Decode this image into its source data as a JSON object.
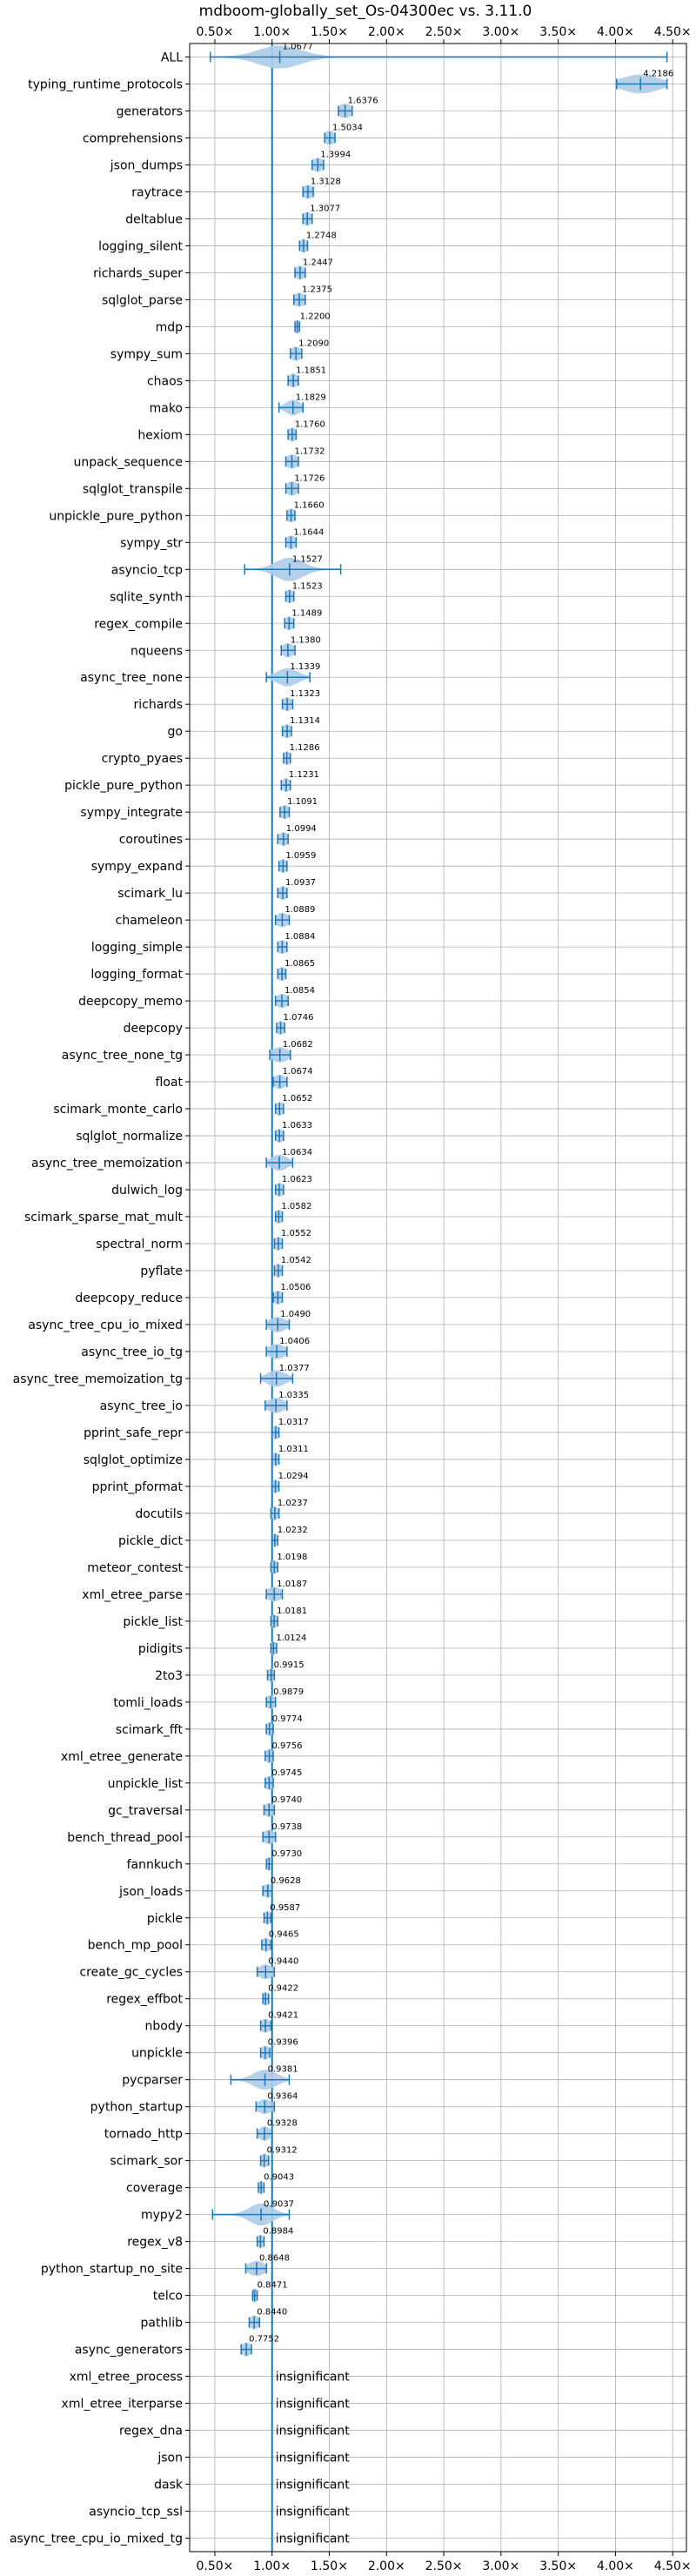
{
  "chart_data": {
    "type": "violin",
    "title": "mdboom-globally_set_Os-04300ec vs. 3.11.0",
    "orientation": "horizontal",
    "xlim": [
      0.28,
      4.62
    ],
    "x_ticks": [
      0.5,
      1.0,
      1.5,
      2.0,
      2.5,
      3.0,
      3.5,
      4.0,
      4.5
    ],
    "x_tick_labels": [
      "0.50×",
      "1.00×",
      "1.50×",
      "2.00×",
      "2.50×",
      "3.00×",
      "3.50×",
      "4.00×",
      "4.50×"
    ],
    "reference_line": 1.0,
    "grid": true,
    "colors": {
      "violin": "#aecde8",
      "accent": "#1f77b4",
      "grid": "#b0b0b0"
    },
    "insignificant_text": "insignificant",
    "benchmarks": [
      {
        "name": "ALL",
        "value": "1.0677",
        "mean": 1.0677,
        "min": 0.46,
        "max": 4.45,
        "spread": 0.18
      },
      {
        "name": "typing_runtime_protocols",
        "value": "4.2186",
        "mean": 4.2186,
        "min": 4.01,
        "max": 4.45,
        "spread": 0.16
      },
      {
        "name": "generators",
        "value": "1.6376",
        "mean": 1.6376,
        "min": 1.58,
        "max": 1.7,
        "spread": 0.06
      },
      {
        "name": "comprehensions",
        "value": "1.5034",
        "mean": 1.5034,
        "min": 1.46,
        "max": 1.55,
        "spread": 0.05
      },
      {
        "name": "json_dumps",
        "value": "1.3994",
        "mean": 1.3994,
        "min": 1.35,
        "max": 1.45,
        "spread": 0.05
      },
      {
        "name": "raytrace",
        "value": "1.3128",
        "mean": 1.3128,
        "min": 1.27,
        "max": 1.36,
        "spread": 0.05
      },
      {
        "name": "deltablue",
        "value": "1.3077",
        "mean": 1.3077,
        "min": 1.27,
        "max": 1.35,
        "spread": 0.04
      },
      {
        "name": "logging_silent",
        "value": "1.2748",
        "mean": 1.2748,
        "min": 1.24,
        "max": 1.31,
        "spread": 0.04
      },
      {
        "name": "richards_super",
        "value": "1.2447",
        "mean": 1.2447,
        "min": 1.2,
        "max": 1.29,
        "spread": 0.04
      },
      {
        "name": "sqlglot_parse",
        "value": "1.2375",
        "mean": 1.2375,
        "min": 1.19,
        "max": 1.29,
        "spread": 0.05
      },
      {
        "name": "mdp",
        "value": "1.2200",
        "mean": 1.22,
        "min": 1.2,
        "max": 1.24,
        "spread": 0.03
      },
      {
        "name": "sympy_sum",
        "value": "1.2090",
        "mean": 1.209,
        "min": 1.16,
        "max": 1.26,
        "spread": 0.05
      },
      {
        "name": "chaos",
        "value": "1.1851",
        "mean": 1.1851,
        "min": 1.14,
        "max": 1.23,
        "spread": 0.04
      },
      {
        "name": "mako",
        "value": "1.1829",
        "mean": 1.1829,
        "min": 1.06,
        "max": 1.27,
        "spread": 0.06
      },
      {
        "name": "hexiom",
        "value": "1.1760",
        "mean": 1.176,
        "min": 1.14,
        "max": 1.21,
        "spread": 0.04
      },
      {
        "name": "unpack_sequence",
        "value": "1.1732",
        "mean": 1.1732,
        "min": 1.12,
        "max": 1.23,
        "spread": 0.05
      },
      {
        "name": "sqlglot_transpile",
        "value": "1.1726",
        "mean": 1.1726,
        "min": 1.12,
        "max": 1.23,
        "spread": 0.05
      },
      {
        "name": "unpickle_pure_python",
        "value": "1.1660",
        "mean": 1.166,
        "min": 1.13,
        "max": 1.2,
        "spread": 0.04
      },
      {
        "name": "sympy_str",
        "value": "1.1644",
        "mean": 1.1644,
        "min": 1.12,
        "max": 1.21,
        "spread": 0.04
      },
      {
        "name": "asyncio_tcp",
        "value": "1.1527",
        "mean": 1.1527,
        "min": 0.76,
        "max": 1.6,
        "spread": 0.12
      },
      {
        "name": "sqlite_synth",
        "value": "1.1523",
        "mean": 1.1523,
        "min": 1.12,
        "max": 1.19,
        "spread": 0.04
      },
      {
        "name": "regex_compile",
        "value": "1.1489",
        "mean": 1.1489,
        "min": 1.11,
        "max": 1.19,
        "spread": 0.04
      },
      {
        "name": "nqueens",
        "value": "1.1380",
        "mean": 1.138,
        "min": 1.08,
        "max": 1.2,
        "spread": 0.05
      },
      {
        "name": "async_tree_none",
        "value": "1.1339",
        "mean": 1.1339,
        "min": 0.95,
        "max": 1.33,
        "spread": 0.09
      },
      {
        "name": "richards",
        "value": "1.1323",
        "mean": 1.1323,
        "min": 1.09,
        "max": 1.18,
        "spread": 0.04
      },
      {
        "name": "go",
        "value": "1.1314",
        "mean": 1.1314,
        "min": 1.09,
        "max": 1.17,
        "spread": 0.04
      },
      {
        "name": "crypto_pyaes",
        "value": "1.1286",
        "mean": 1.1286,
        "min": 1.1,
        "max": 1.16,
        "spread": 0.04
      },
      {
        "name": "pickle_pure_python",
        "value": "1.1231",
        "mean": 1.1231,
        "min": 1.08,
        "max": 1.16,
        "spread": 0.04
      },
      {
        "name": "sympy_integrate",
        "value": "1.1091",
        "mean": 1.1091,
        "min": 1.07,
        "max": 1.15,
        "spread": 0.04
      },
      {
        "name": "coroutines",
        "value": "1.0994",
        "mean": 1.0994,
        "min": 1.05,
        "max": 1.14,
        "spread": 0.04
      },
      {
        "name": "sympy_expand",
        "value": "1.0959",
        "mean": 1.0959,
        "min": 1.06,
        "max": 1.13,
        "spread": 0.04
      },
      {
        "name": "scimark_lu",
        "value": "1.0937",
        "mean": 1.0937,
        "min": 1.05,
        "max": 1.13,
        "spread": 0.04
      },
      {
        "name": "chameleon",
        "value": "1.0889",
        "mean": 1.0889,
        "min": 1.03,
        "max": 1.15,
        "spread": 0.05
      },
      {
        "name": "logging_simple",
        "value": "1.0884",
        "mean": 1.0884,
        "min": 1.05,
        "max": 1.13,
        "spread": 0.04
      },
      {
        "name": "logging_format",
        "value": "1.0865",
        "mean": 1.0865,
        "min": 1.05,
        "max": 1.12,
        "spread": 0.04
      },
      {
        "name": "deepcopy_memo",
        "value": "1.0854",
        "mean": 1.0854,
        "min": 1.03,
        "max": 1.14,
        "spread": 0.05
      },
      {
        "name": "deepcopy",
        "value": "1.0746",
        "mean": 1.0746,
        "min": 1.04,
        "max": 1.11,
        "spread": 0.04
      },
      {
        "name": "async_tree_none_tg",
        "value": "1.0682",
        "mean": 1.0682,
        "min": 0.98,
        "max": 1.16,
        "spread": 0.07
      },
      {
        "name": "float",
        "value": "1.0674",
        "mean": 1.0674,
        "min": 1.01,
        "max": 1.13,
        "spread": 0.05
      },
      {
        "name": "scimark_monte_carlo",
        "value": "1.0652",
        "mean": 1.0652,
        "min": 1.03,
        "max": 1.1,
        "spread": 0.04
      },
      {
        "name": "sqlglot_normalize",
        "value": "1.0633",
        "mean": 1.0633,
        "min": 1.03,
        "max": 1.1,
        "spread": 0.04
      },
      {
        "name": "async_tree_memoization",
        "value": "1.0634",
        "mean": 1.0634,
        "min": 0.95,
        "max": 1.18,
        "spread": 0.07
      },
      {
        "name": "dulwich_log",
        "value": "1.0623",
        "mean": 1.0623,
        "min": 1.03,
        "max": 1.1,
        "spread": 0.04
      },
      {
        "name": "scimark_sparse_mat_mult",
        "value": "1.0582",
        "mean": 1.0582,
        "min": 1.03,
        "max": 1.09,
        "spread": 0.04
      },
      {
        "name": "spectral_norm",
        "value": "1.0552",
        "mean": 1.0552,
        "min": 1.02,
        "max": 1.09,
        "spread": 0.04
      },
      {
        "name": "pyflate",
        "value": "1.0542",
        "mean": 1.0542,
        "min": 1.02,
        "max": 1.09,
        "spread": 0.04
      },
      {
        "name": "deepcopy_reduce",
        "value": "1.0506",
        "mean": 1.0506,
        "min": 1.01,
        "max": 1.09,
        "spread": 0.04
      },
      {
        "name": "async_tree_cpu_io_mixed",
        "value": "1.0490",
        "mean": 1.049,
        "min": 0.95,
        "max": 1.15,
        "spread": 0.07
      },
      {
        "name": "async_tree_io_tg",
        "value": "1.0406",
        "mean": 1.0406,
        "min": 0.95,
        "max": 1.13,
        "spread": 0.07
      },
      {
        "name": "async_tree_memoization_tg",
        "value": "1.0377",
        "mean": 1.0377,
        "min": 0.9,
        "max": 1.18,
        "spread": 0.08
      },
      {
        "name": "async_tree_io",
        "value": "1.0335",
        "mean": 1.0335,
        "min": 0.94,
        "max": 1.13,
        "spread": 0.07
      },
      {
        "name": "pprint_safe_repr",
        "value": "1.0317",
        "mean": 1.0317,
        "min": 1.0,
        "max": 1.06,
        "spread": 0.03
      },
      {
        "name": "sqlglot_optimize",
        "value": "1.0311",
        "mean": 1.0311,
        "min": 1.0,
        "max": 1.06,
        "spread": 0.03
      },
      {
        "name": "pprint_pformat",
        "value": "1.0294",
        "mean": 1.0294,
        "min": 1.0,
        "max": 1.06,
        "spread": 0.03
      },
      {
        "name": "docutils",
        "value": "1.0237",
        "mean": 1.0237,
        "min": 0.99,
        "max": 1.06,
        "spread": 0.03
      },
      {
        "name": "pickle_dict",
        "value": "1.0232",
        "mean": 1.0232,
        "min": 1.0,
        "max": 1.05,
        "spread": 0.03
      },
      {
        "name": "meteor_contest",
        "value": "1.0198",
        "mean": 1.0198,
        "min": 0.99,
        "max": 1.05,
        "spread": 0.03
      },
      {
        "name": "xml_etree_parse",
        "value": "1.0187",
        "mean": 1.0187,
        "min": 0.95,
        "max": 1.09,
        "spread": 0.06
      },
      {
        "name": "pickle_list",
        "value": "1.0181",
        "mean": 1.0181,
        "min": 0.99,
        "max": 1.05,
        "spread": 0.03
      },
      {
        "name": "pidigits",
        "value": "1.0124",
        "mean": 1.0124,
        "min": 0.99,
        "max": 1.04,
        "spread": 0.03
      },
      {
        "name": "2to3",
        "value": "0.9915",
        "mean": 0.9915,
        "min": 0.96,
        "max": 1.02,
        "spread": 0.03
      },
      {
        "name": "tomli_loads",
        "value": "0.9879",
        "mean": 0.9879,
        "min": 0.95,
        "max": 1.03,
        "spread": 0.04
      },
      {
        "name": "scimark_fft",
        "value": "0.9774",
        "mean": 0.9774,
        "min": 0.95,
        "max": 1.01,
        "spread": 0.03
      },
      {
        "name": "xml_etree_generate",
        "value": "0.9756",
        "mean": 0.9756,
        "min": 0.94,
        "max": 1.01,
        "spread": 0.04
      },
      {
        "name": "unpickle_list",
        "value": "0.9745",
        "mean": 0.9745,
        "min": 0.94,
        "max": 1.01,
        "spread": 0.04
      },
      {
        "name": "gc_traversal",
        "value": "0.9740",
        "mean": 0.974,
        "min": 0.93,
        "max": 1.02,
        "spread": 0.04
      },
      {
        "name": "bench_thread_pool",
        "value": "0.9738",
        "mean": 0.9738,
        "min": 0.92,
        "max": 1.03,
        "spread": 0.05
      },
      {
        "name": "fannkuch",
        "value": "0.9730",
        "mean": 0.973,
        "min": 0.95,
        "max": 1.0,
        "spread": 0.03
      },
      {
        "name": "json_loads",
        "value": "0.9628",
        "mean": 0.9628,
        "min": 0.92,
        "max": 1.0,
        "spread": 0.04
      },
      {
        "name": "pickle",
        "value": "0.9587",
        "mean": 0.9587,
        "min": 0.93,
        "max": 0.99,
        "spread": 0.03
      },
      {
        "name": "bench_mp_pool",
        "value": "0.9465",
        "mean": 0.9465,
        "min": 0.91,
        "max": 0.99,
        "spread": 0.04
      },
      {
        "name": "create_gc_cycles",
        "value": "0.9440",
        "mean": 0.944,
        "min": 0.87,
        "max": 1.02,
        "spread": 0.06
      },
      {
        "name": "regex_effbot",
        "value": "0.9422",
        "mean": 0.9422,
        "min": 0.92,
        "max": 0.97,
        "spread": 0.03
      },
      {
        "name": "nbody",
        "value": "0.9421",
        "mean": 0.9421,
        "min": 0.9,
        "max": 0.99,
        "spread": 0.04
      },
      {
        "name": "unpickle",
        "value": "0.9396",
        "mean": 0.9396,
        "min": 0.9,
        "max": 0.98,
        "spread": 0.04
      },
      {
        "name": "pycparser",
        "value": "0.9381",
        "mean": 0.9381,
        "min": 0.64,
        "max": 1.15,
        "spread": 0.1
      },
      {
        "name": "python_startup",
        "value": "0.9364",
        "mean": 0.9364,
        "min": 0.86,
        "max": 1.02,
        "spread": 0.06
      },
      {
        "name": "tornado_http",
        "value": "0.9328",
        "mean": 0.9328,
        "min": 0.87,
        "max": 1.0,
        "spread": 0.05
      },
      {
        "name": "scimark_sor",
        "value": "0.9312",
        "mean": 0.9312,
        "min": 0.9,
        "max": 0.97,
        "spread": 0.04
      },
      {
        "name": "coverage",
        "value": "0.9043",
        "mean": 0.9043,
        "min": 0.88,
        "max": 0.93,
        "spread": 0.03
      },
      {
        "name": "mypy2",
        "value": "0.9037",
        "mean": 0.9037,
        "min": 0.48,
        "max": 1.15,
        "spread": 0.1
      },
      {
        "name": "regex_v8",
        "value": "0.8984",
        "mean": 0.8984,
        "min": 0.87,
        "max": 0.93,
        "spread": 0.03
      },
      {
        "name": "python_startup_no_site",
        "value": "0.8648",
        "mean": 0.8648,
        "min": 0.77,
        "max": 0.95,
        "spread": 0.07
      },
      {
        "name": "telco",
        "value": "0.8471",
        "mean": 0.8471,
        "min": 0.83,
        "max": 0.87,
        "spread": 0.03
      },
      {
        "name": "pathlib",
        "value": "0.8440",
        "mean": 0.844,
        "min": 0.8,
        "max": 0.89,
        "spread": 0.04
      },
      {
        "name": "async_generators",
        "value": "0.7752",
        "mean": 0.7752,
        "min": 0.73,
        "max": 0.82,
        "spread": 0.04
      },
      {
        "name": "xml_etree_process",
        "insignificant": true
      },
      {
        "name": "xml_etree_iterparse",
        "insignificant": true
      },
      {
        "name": "regex_dna",
        "insignificant": true
      },
      {
        "name": "json",
        "insignificant": true
      },
      {
        "name": "dask",
        "insignificant": true
      },
      {
        "name": "asyncio_tcp_ssl",
        "insignificant": true
      },
      {
        "name": "async_tree_cpu_io_mixed_tg",
        "insignificant": true
      }
    ]
  }
}
